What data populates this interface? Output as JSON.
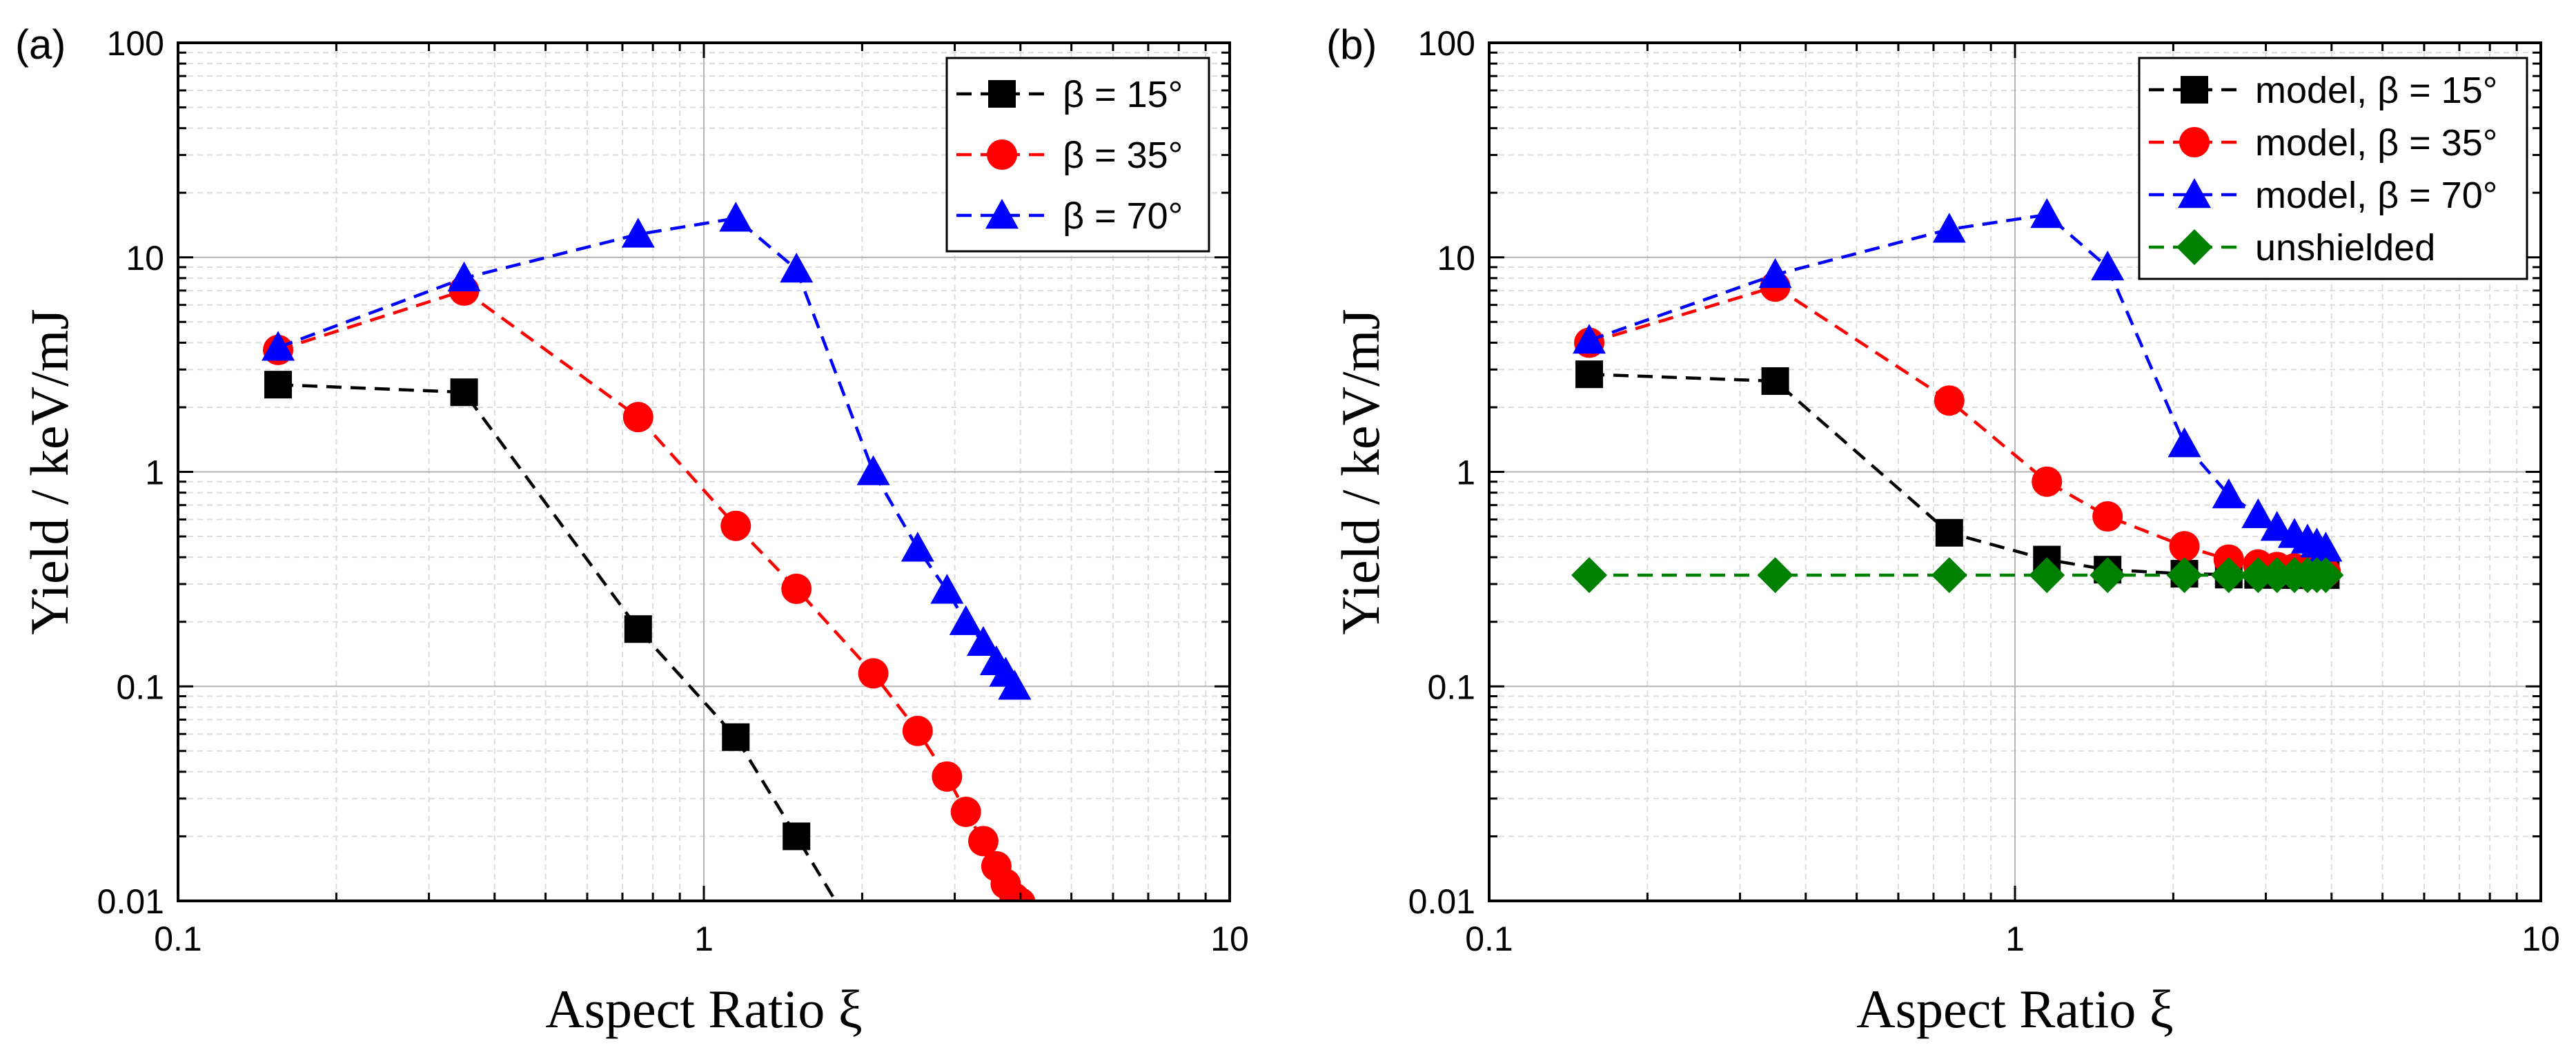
{
  "chart_data": [
    {
      "type": "scatter",
      "panel_label": "(a)",
      "xlabel": "Aspect Ratio ξ",
      "ylabel": "Yield / keV/mJ",
      "xscale": "log",
      "yscale": "log",
      "xlim": [
        0.1,
        10
      ],
      "ylim": [
        0.01,
        100
      ],
      "x_ticks": [
        0.1,
        1,
        10
      ],
      "x_tick_labels": [
        "0.1",
        "1",
        "10"
      ],
      "y_ticks": [
        0.01,
        0.1,
        1,
        10,
        100
      ],
      "y_tick_labels": [
        "0.01",
        "0.1",
        "1",
        "10",
        "100"
      ],
      "grid": true,
      "legend_position": "top-right",
      "series": [
        {
          "name": "β = 15°",
          "marker": "square",
          "color": "#000000",
          "line": "dashed",
          "x": [
            0.155,
            0.35,
            0.75,
            1.15,
            1.5,
            1.78
          ],
          "y": [
            2.55,
            2.35,
            0.185,
            0.058,
            0.02,
            0.01
          ],
          "marker_count": 5
        },
        {
          "name": "β = 35°",
          "marker": "circle",
          "color": "#ff0000",
          "line": "dashed",
          "x": [
            0.155,
            0.35,
            0.75,
            1.15,
            1.5,
            2.1,
            2.55,
            2.9,
            3.15,
            3.4,
            3.6,
            3.75,
            3.9,
            4.0
          ],
          "y": [
            3.7,
            7.0,
            1.8,
            0.56,
            0.285,
            0.115,
            0.062,
            0.038,
            0.026,
            0.019,
            0.0145,
            0.012,
            0.0103,
            0.0098
          ],
          "marker_count": 14
        },
        {
          "name": "β = 70°",
          "marker": "triangle",
          "color": "#0000ff",
          "line": "dashed",
          "x": [
            0.155,
            0.35,
            0.75,
            1.15,
            1.5,
            2.1,
            2.55,
            2.9,
            3.15,
            3.4,
            3.6,
            3.75,
            3.9
          ],
          "y": [
            3.8,
            8.0,
            12.8,
            15.2,
            8.8,
            1.0,
            0.44,
            0.28,
            0.2,
            0.16,
            0.13,
            0.115,
            0.1
          ],
          "marker_count": 13
        }
      ]
    },
    {
      "type": "scatter",
      "panel_label": "(b)",
      "xlabel": "Aspect Ratio ξ",
      "ylabel": "Yield / keV/mJ",
      "xscale": "log",
      "yscale": "log",
      "xlim": [
        0.1,
        10
      ],
      "ylim": [
        0.01,
        100
      ],
      "x_ticks": [
        0.1,
        1,
        10
      ],
      "x_tick_labels": [
        "0.1",
        "1",
        "10"
      ],
      "y_ticks": [
        0.01,
        0.1,
        1,
        10,
        100
      ],
      "y_tick_labels": [
        "0.01",
        "0.1",
        "1",
        "10",
        "100"
      ],
      "grid": true,
      "legend_position": "top-right",
      "series": [
        {
          "name": "model, β = 15°",
          "marker": "square",
          "color": "#000000",
          "line": "dashed",
          "x": [
            0.155,
            0.35,
            0.75,
            1.15,
            1.5,
            2.1,
            2.55,
            2.9,
            3.15,
            3.4,
            3.6,
            3.75,
            3.9
          ],
          "y": [
            2.85,
            2.65,
            0.52,
            0.39,
            0.35,
            0.335,
            0.332,
            0.331,
            0.331,
            0.33,
            0.33,
            0.33,
            0.33
          ],
          "marker_count": 13
        },
        {
          "name": "model, β = 35°",
          "marker": "circle",
          "color": "#ff0000",
          "line": "dashed",
          "x": [
            0.155,
            0.35,
            0.75,
            1.15,
            1.5,
            2.1,
            2.55,
            2.9,
            3.15,
            3.4,
            3.6,
            3.75,
            3.9
          ],
          "y": [
            4.0,
            7.3,
            2.15,
            0.9,
            0.62,
            0.45,
            0.39,
            0.37,
            0.36,
            0.355,
            0.35,
            0.345,
            0.34
          ],
          "marker_count": 13
        },
        {
          "name": "model, β = 70°",
          "marker": "triangle",
          "color": "#0000ff",
          "line": "dashed",
          "x": [
            0.155,
            0.35,
            0.75,
            1.15,
            1.5,
            2.1,
            2.55,
            2.9,
            3.15,
            3.4,
            3.6,
            3.75,
            3.9
          ],
          "y": [
            4.1,
            8.3,
            13.5,
            15.8,
            9.0,
            1.35,
            0.78,
            0.63,
            0.55,
            0.51,
            0.48,
            0.46,
            0.44
          ],
          "marker_count": 13
        },
        {
          "name": "unshielded",
          "marker": "diamond",
          "color": "#008000",
          "line": "dashed",
          "x": [
            0.155,
            0.35,
            0.75,
            1.15,
            1.5,
            2.1,
            2.55,
            2.9,
            3.15,
            3.4,
            3.6,
            3.75,
            3.9
          ],
          "y": [
            0.33,
            0.33,
            0.33,
            0.33,
            0.33,
            0.33,
            0.33,
            0.33,
            0.33,
            0.33,
            0.33,
            0.33,
            0.33
          ],
          "marker_count": 13
        }
      ]
    }
  ]
}
